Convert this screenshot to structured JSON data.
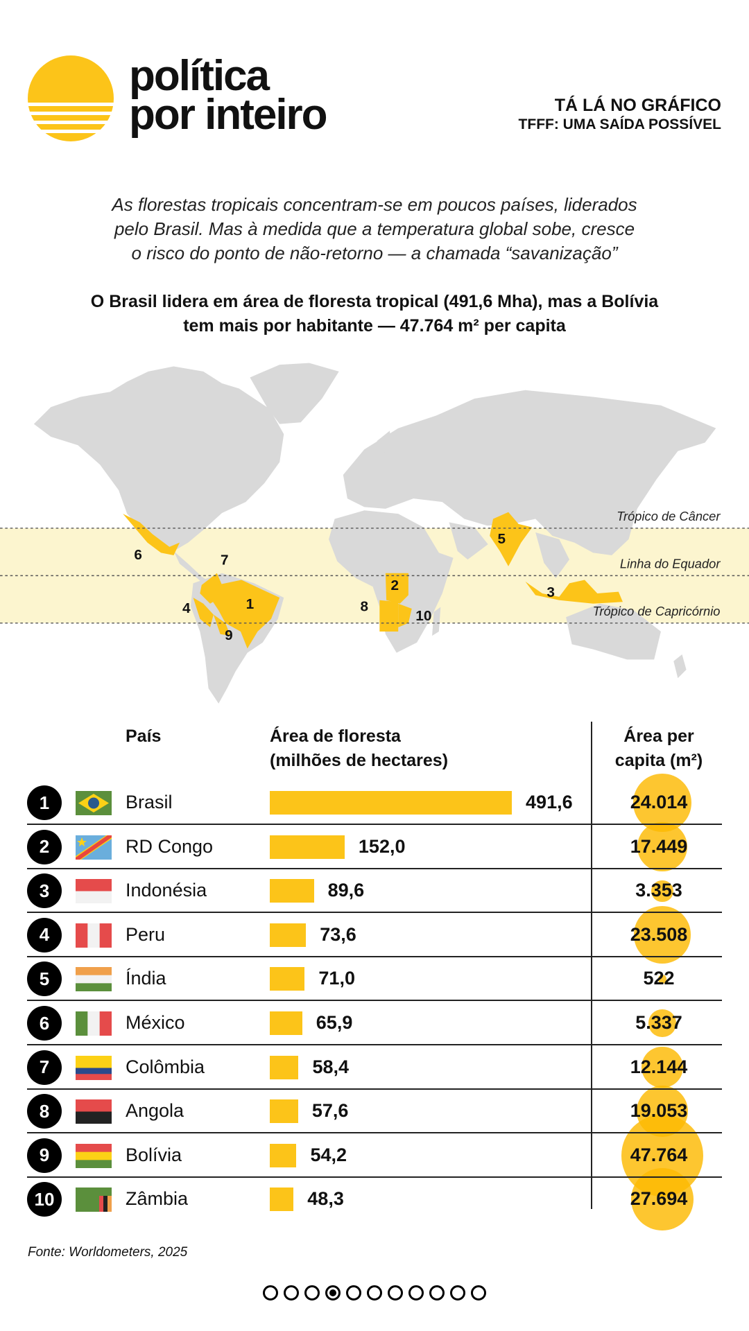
{
  "header": {
    "brand_line1": "política",
    "brand_line2": "por inteiro",
    "series_title": "TÁ LÁ NO GRÁFICO",
    "series_subtitle": "TFFF: UMA SAÍDA POSSÍVEL"
  },
  "intro": [
    "As florestas tropicais concentram-se em poucos países, liderados",
    "pelo Brasil. Mas à medida que a temperatura global sobe, cresce",
    "o risco do ponto de não-retorno — a chamada “savanização”"
  ],
  "headline": [
    "O Brasil lidera em área de floresta tropical (491,6 Mha), mas a Bolívia",
    "tem mais por habitante — 47.764 m² per capita"
  ],
  "map": {
    "lines": {
      "cancer": "Trópico de Câncer",
      "equator": "Linha do Equador",
      "capricorn": "Trópico de Capricórnio"
    },
    "band_color": "#fcf5cf",
    "land_color": "#d9d9d9",
    "highlight_color": "#fcc419",
    "markers": [
      "1",
      "2",
      "3",
      "4",
      "5",
      "6",
      "7",
      "8",
      "9",
      "10"
    ]
  },
  "chart_data": {
    "type": "table",
    "title": "O Brasil lidera em área de floresta tropical (491,6 Mha), mas a Bolívia tem mais por habitante — 47.764 m² per capita",
    "columns": {
      "country": "País",
      "area_1": "Área de floresta",
      "area_2": "(milhões de hectares)",
      "pc_1": "Área per",
      "pc_2": "capita (m²)"
    },
    "rows": [
      {
        "rank": "1",
        "country": "Brasil",
        "area": 491.6,
        "area_label": "491,6",
        "per_capita": 24014,
        "per_capita_label": "24.014",
        "flag": {
          "kind": "brazil",
          "colors": [
            "#5b8f3c",
            "#fcd116",
            "#2a5a8c"
          ]
        }
      },
      {
        "rank": "2",
        "country": "RD Congo",
        "area": 152.0,
        "area_label": "152,0",
        "per_capita": 17449,
        "per_capita_label": "17.449",
        "flag": {
          "kind": "drc",
          "colors": [
            "#6aaedc",
            "#e8473f",
            "#fcd116"
          ]
        }
      },
      {
        "rank": "3",
        "country": "Indonésia",
        "area": 89.6,
        "area_label": "89,6",
        "per_capita": 3353,
        "per_capita_label": "3.353",
        "flag": {
          "kind": "h",
          "colors": [
            "#e54b4b",
            "#f2f2f2"
          ]
        }
      },
      {
        "rank": "4",
        "country": "Peru",
        "area": 73.6,
        "area_label": "73,6",
        "per_capita": 23508,
        "per_capita_label": "23.508",
        "flag": {
          "kind": "v",
          "colors": [
            "#e54b4b",
            "#f2f2f2",
            "#e54b4b"
          ]
        }
      },
      {
        "rank": "5",
        "country": "Índia",
        "area": 71.0,
        "area_label": "71,0",
        "per_capita": 522,
        "per_capita_label": "522",
        "flag": {
          "kind": "h",
          "colors": [
            "#f0a04b",
            "#f2f2f2",
            "#5b8f3c"
          ]
        }
      },
      {
        "rank": "6",
        "country": "México",
        "area": 65.9,
        "area_label": "65,9",
        "per_capita": 5337,
        "per_capita_label": "5.337",
        "flag": {
          "kind": "v",
          "colors": [
            "#5b8f3c",
            "#f2f2f2",
            "#e54b4b"
          ]
        }
      },
      {
        "rank": "7",
        "country": "Colômbia",
        "area": 58.4,
        "area_label": "58,4",
        "per_capita": 12144,
        "per_capita_label": "12.144",
        "flag": {
          "kind": "h",
          "colors": [
            "#fcd116",
            "#fcd116",
            "#2a4a8c",
            "#e54b4b"
          ]
        }
      },
      {
        "rank": "8",
        "country": "Angola",
        "area": 57.6,
        "area_label": "57,6",
        "per_capita": 19053,
        "per_capita_label": "19.053",
        "flag": {
          "kind": "h",
          "colors": [
            "#e54b4b",
            "#222222"
          ]
        }
      },
      {
        "rank": "9",
        "country": "Bolívia",
        "area": 54.2,
        "area_label": "54,2",
        "per_capita": 47764,
        "per_capita_label": "47.764",
        "flag": {
          "kind": "h",
          "colors": [
            "#e54b4b",
            "#fcd116",
            "#5b8f3c"
          ]
        }
      },
      {
        "rank": "10",
        "country": "Zâmbia",
        "area": 48.3,
        "area_label": "48,3",
        "per_capita": 27694,
        "per_capita_label": "27.694",
        "flag": {
          "kind": "zambia",
          "colors": [
            "#5b8f3c",
            "#e54b4b",
            "#222222",
            "#f0a04b"
          ]
        }
      }
    ]
  },
  "source": "Fonte: Worldometers, 2025",
  "pagination": {
    "total": 11,
    "current": 4
  },
  "colors": {
    "accent": "#fcc419"
  }
}
